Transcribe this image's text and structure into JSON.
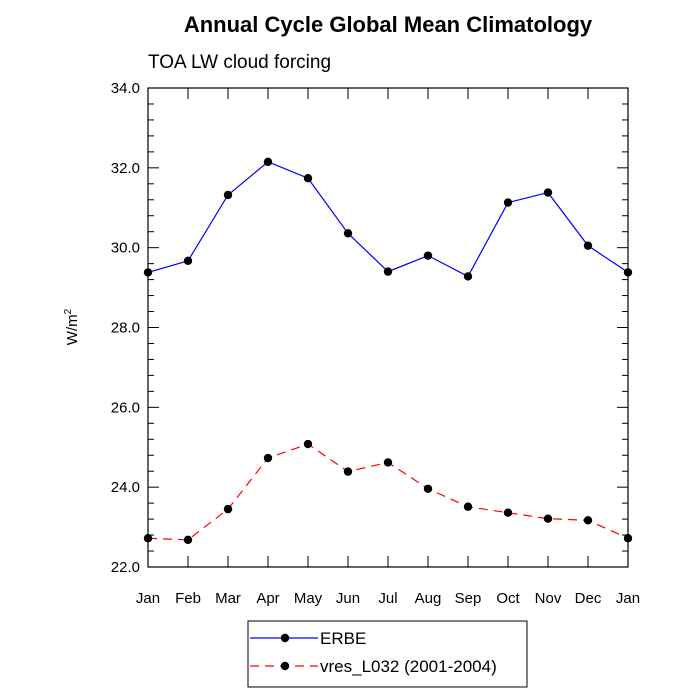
{
  "chart_data": {
    "type": "line",
    "title": "Annual Cycle Global Mean Climatology",
    "subtitle": "TOA LW cloud forcing",
    "ylabel": "W/m",
    "ylabel_sup": "2",
    "xlabel": "",
    "categories": [
      "Jan",
      "Feb",
      "Mar",
      "Apr",
      "May",
      "Jun",
      "Jul",
      "Aug",
      "Sep",
      "Oct",
      "Nov",
      "Dec",
      "Jan"
    ],
    "ylim": [
      22.0,
      34.0
    ],
    "yticks": [
      "22.0",
      "24.0",
      "26.0",
      "28.0",
      "30.0",
      "32.0",
      "34.0"
    ],
    "legend_position": "bottom",
    "series": [
      {
        "name": "ERBE",
        "color": "#0000ff",
        "dash": "solid",
        "values": [
          29.38,
          29.67,
          31.32,
          32.15,
          31.74,
          30.36,
          29.4,
          29.8,
          29.28,
          31.13,
          31.38,
          30.05,
          29.38
        ]
      },
      {
        "name": "vres_L032 (2001-2004)",
        "color": "#ff0000",
        "dash": "dashed",
        "values": [
          22.72,
          22.68,
          23.45,
          24.73,
          25.08,
          24.39,
          24.62,
          23.96,
          23.51,
          23.36,
          23.21,
          23.17,
          22.72
        ]
      }
    ]
  }
}
